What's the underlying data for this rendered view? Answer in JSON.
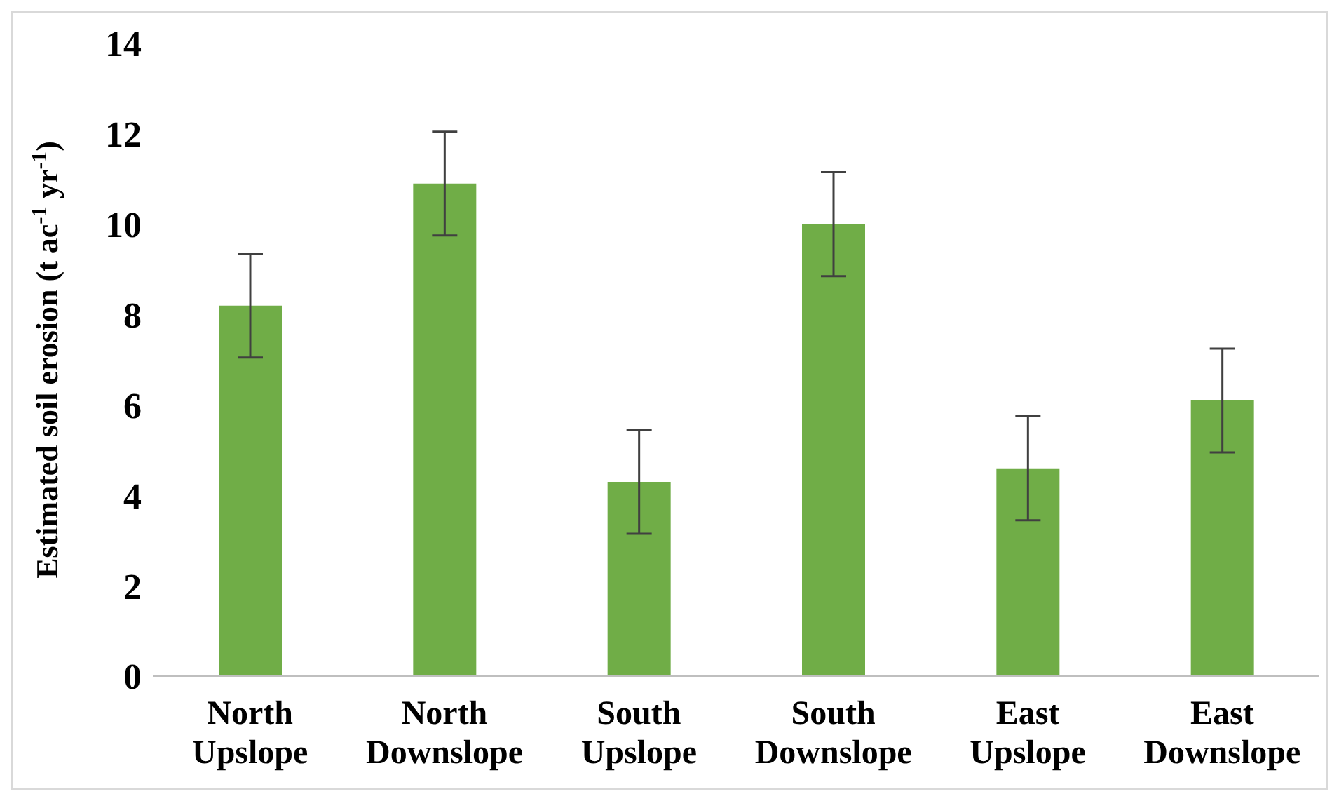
{
  "chart_data": {
    "type": "bar",
    "ylabel": "Estimated soil erosion (t ac$^{-1}$ yr$^{-1}$)",
    "categories": [
      "North Upslope",
      "North Downslope",
      "South Upslope",
      "South Downslope",
      "East Upslope",
      "East Downslope"
    ],
    "values": [
      8.2,
      10.9,
      4.3,
      10.0,
      4.6,
      6.1
    ],
    "errors": [
      1.15,
      1.15,
      1.15,
      1.15,
      1.15,
      1.15
    ],
    "color": "#70ad47",
    "ylim": [
      0,
      14
    ],
    "yticks": [
      0,
      2,
      4,
      6,
      8,
      10,
      12,
      14
    ],
    "grid": false,
    "legend": false
  }
}
